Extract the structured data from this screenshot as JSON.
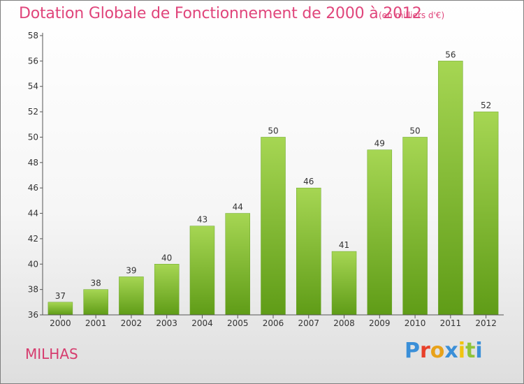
{
  "header": {
    "title": "Dotation Globale de Fonctionnement de 2000 à 2012",
    "subtitle": "(en milliers d'€)"
  },
  "footer": {
    "commune": "MILHAS",
    "logo_text": "Proxiti",
    "logo_colors": [
      "#3a8fd8",
      "#e8402a",
      "#e8a21a",
      "#3a8fd8",
      "#f1c40f",
      "#8fc43a",
      "#3a8fd8"
    ]
  },
  "colors": {
    "bar_light": "#a6d653",
    "bar_dark": "#5f9c17",
    "axis": "#555555",
    "title": "#e0457b"
  },
  "chart_data": {
    "type": "bar",
    "categories": [
      "2000",
      "2001",
      "2002",
      "2003",
      "2004",
      "2005",
      "2006",
      "2007",
      "2008",
      "2009",
      "2010",
      "2011",
      "2012"
    ],
    "values": [
      37,
      38,
      39,
      40,
      43,
      44,
      50,
      46,
      41,
      49,
      50,
      56,
      52
    ],
    "title": "Dotation Globale de Fonctionnement de 2000 à 2012",
    "subtitle": "(en milliers d'€)",
    "ylim": [
      36,
      58
    ],
    "yticks": [
      36,
      38,
      40,
      42,
      44,
      46,
      48,
      50,
      52,
      54,
      56,
      58
    ],
    "grid": false,
    "legend": "none"
  }
}
